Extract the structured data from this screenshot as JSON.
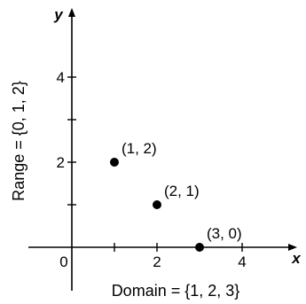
{
  "chart_data": {
    "type": "scatter",
    "title": "",
    "xlabel": "x",
    "ylabel": "y",
    "xlim": [
      -1,
      5.5
    ],
    "ylim": [
      -1,
      5
    ],
    "x_ticks": [
      0,
      2,
      4
    ],
    "y_ticks": [
      2,
      4
    ],
    "grid": false,
    "series": [
      {
        "points": [
          {
            "x": 1,
            "y": 2,
            "label": "(1, 2)"
          },
          {
            "x": 2,
            "y": 1,
            "label": "(2, 1)"
          },
          {
            "x": 3,
            "y": 0,
            "label": "(3, 0)"
          }
        ]
      }
    ],
    "annotations": {
      "domain": "Domain = {1, 2, 3}",
      "range": "Range = {0, 1, 2}"
    },
    "colors": {
      "axis": "#000000",
      "point": "#000000",
      "text": "#000000"
    }
  }
}
